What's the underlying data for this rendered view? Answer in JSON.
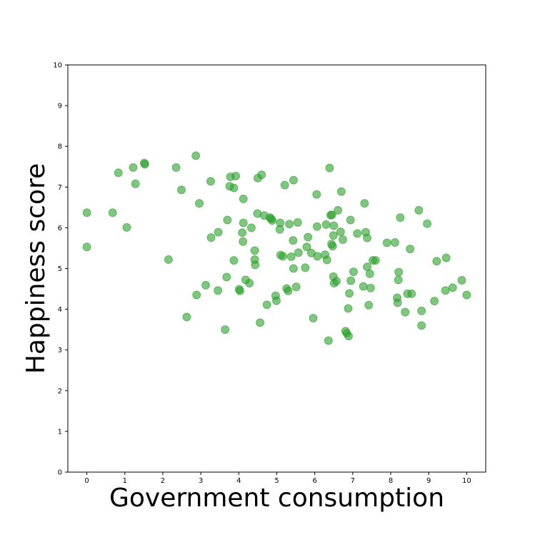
{
  "chart_data": {
    "type": "scatter",
    "title": "",
    "xlabel": "Government consumption",
    "ylabel": "Happiness score",
    "xlim": [
      -0.5,
      10.5
    ],
    "ylim": [
      0,
      10
    ],
    "xticks": [
      "0",
      "1",
      "2",
      "3",
      "4",
      "5",
      "6",
      "7",
      "8",
      "9",
      "10"
    ],
    "yticks": [
      "0",
      "1",
      "2",
      "3",
      "4",
      "5",
      "6",
      "7",
      "8",
      "9",
      "10"
    ],
    "grid": false,
    "legend": "none",
    "marker_color": "#2ca02c",
    "marker_opacity": 0.6,
    "series": [
      {
        "points": [
          [
            0.0,
            6.37
          ],
          [
            0.0,
            5.53
          ],
          [
            0.68,
            6.37
          ],
          [
            0.83,
            7.35
          ],
          [
            1.05,
            6.01
          ],
          [
            1.22,
            7.48
          ],
          [
            1.28,
            7.08
          ],
          [
            1.51,
            7.59
          ],
          [
            1.53,
            7.56
          ],
          [
            2.15,
            5.22
          ],
          [
            2.35,
            7.48
          ],
          [
            2.49,
            6.93
          ],
          [
            2.63,
            3.81
          ],
          [
            2.87,
            7.77
          ],
          [
            2.89,
            4.35
          ],
          [
            2.96,
            6.6
          ],
          [
            3.13,
            4.59
          ],
          [
            3.26,
            7.14
          ],
          [
            3.27,
            5.76
          ],
          [
            3.46,
            5.89
          ],
          [
            3.45,
            4.46
          ],
          [
            3.64,
            3.5
          ],
          [
            3.68,
            4.79
          ],
          [
            3.7,
            6.19
          ],
          [
            3.76,
            7.02
          ],
          [
            3.78,
            7.25
          ],
          [
            3.87,
            6.98
          ],
          [
            3.87,
            5.2
          ],
          [
            3.92,
            7.27
          ],
          [
            4.01,
            4.49
          ],
          [
            4.03,
            4.45
          ],
          [
            4.09,
            5.88
          ],
          [
            4.12,
            6.71
          ],
          [
            4.12,
            6.12
          ],
          [
            4.11,
            5.66
          ],
          [
            4.18,
            4.72
          ],
          [
            4.28,
            4.64
          ],
          [
            4.33,
            6.0
          ],
          [
            4.42,
            5.44
          ],
          [
            4.42,
            5.22
          ],
          [
            4.43,
            5.09
          ],
          [
            4.49,
            6.35
          ],
          [
            4.5,
            7.22
          ],
          [
            4.56,
            3.67
          ],
          [
            4.6,
            7.3
          ],
          [
            4.67,
            6.3
          ],
          [
            4.74,
            4.11
          ],
          [
            4.82,
            6.25
          ],
          [
            4.85,
            6.22
          ],
          [
            4.88,
            6.18
          ],
          [
            4.97,
            4.33
          ],
          [
            4.99,
            4.21
          ],
          [
            5.08,
            5.96
          ],
          [
            5.09,
            6.12
          ],
          [
            5.1,
            5.33
          ],
          [
            5.16,
            5.3
          ],
          [
            5.21,
            7.05
          ],
          [
            5.26,
            4.51
          ],
          [
            5.3,
            4.45
          ],
          [
            5.33,
            6.09
          ],
          [
            5.38,
            5.29
          ],
          [
            5.43,
            5.69
          ],
          [
            5.44,
            7.17
          ],
          [
            5.44,
            5.0
          ],
          [
            5.51,
            4.55
          ],
          [
            5.55,
            6.13
          ],
          [
            5.57,
            5.39
          ],
          [
            5.75,
            5.02
          ],
          [
            5.79,
            5.53
          ],
          [
            5.82,
            5.77
          ],
          [
            5.91,
            5.38
          ],
          [
            5.96,
            3.78
          ],
          [
            6.05,
            6.82
          ],
          [
            6.06,
            6.03
          ],
          [
            6.07,
            5.3
          ],
          [
            6.27,
            5.34
          ],
          [
            6.3,
            6.08
          ],
          [
            6.32,
            5.21
          ],
          [
            6.36,
            3.23
          ],
          [
            6.39,
            7.47
          ],
          [
            6.42,
            6.31
          ],
          [
            6.45,
            6.32
          ],
          [
            6.44,
            5.6
          ],
          [
            6.47,
            5.55
          ],
          [
            6.49,
            5.81
          ],
          [
            6.5,
            6.05
          ],
          [
            6.49,
            4.8
          ],
          [
            6.51,
            4.64
          ],
          [
            6.57,
            4.69
          ],
          [
            6.61,
            6.43
          ],
          [
            6.68,
            5.9
          ],
          [
            6.7,
            6.89
          ],
          [
            6.74,
            5.71
          ],
          [
            6.81,
            3.46
          ],
          [
            6.84,
            3.41
          ],
          [
            6.88,
            4.02
          ],
          [
            6.89,
            3.34
          ],
          [
            6.91,
            4.39
          ],
          [
            6.94,
            6.19
          ],
          [
            6.95,
            4.7
          ],
          [
            7.02,
            4.92
          ],
          [
            7.12,
            5.86
          ],
          [
            7.28,
            4.56
          ],
          [
            7.31,
            6.6
          ],
          [
            7.34,
            5.89
          ],
          [
            7.38,
            5.75
          ],
          [
            7.38,
            5.04
          ],
          [
            7.42,
            4.1
          ],
          [
            7.45,
            4.87
          ],
          [
            7.47,
            4.52
          ],
          [
            7.53,
            5.2
          ],
          [
            7.6,
            5.2
          ],
          [
            7.9,
            5.63
          ],
          [
            8.11,
            5.64
          ],
          [
            8.17,
            4.28
          ],
          [
            8.18,
            4.16
          ],
          [
            8.2,
            4.72
          ],
          [
            8.21,
            4.91
          ],
          [
            8.25,
            6.25
          ],
          [
            8.38,
            3.93
          ],
          [
            8.44,
            4.38
          ],
          [
            8.51,
            5.48
          ],
          [
            8.55,
            4.38
          ],
          [
            8.74,
            6.43
          ],
          [
            8.81,
            3.96
          ],
          [
            8.81,
            3.6
          ],
          [
            8.96,
            6.1
          ],
          [
            9.15,
            4.2
          ],
          [
            9.21,
            5.18
          ],
          [
            9.44,
            4.46
          ],
          [
            9.46,
            5.26
          ],
          [
            9.63,
            4.53
          ],
          [
            9.87,
            4.71
          ],
          [
            10.0,
            4.35
          ]
        ]
      }
    ]
  }
}
